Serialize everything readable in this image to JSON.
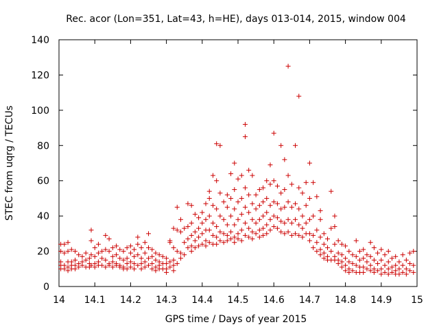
{
  "chart_data": {
    "type": "scatter",
    "title": "Rec. acor (Lon=351, Lat=43, h=HE), days 013-014, 2015, window 004",
    "xlabel": "GPS time / Days of year 2015",
    "ylabel": "STEC from uqrg / TECUs",
    "xlim": [
      14,
      15
    ],
    "ylim": [
      0,
      140
    ],
    "xticks": [
      "14",
      "14.1",
      "14.2",
      "14.3",
      "14.4",
      "14.5",
      "14.6",
      "14.7",
      "14.8",
      "14.9",
      "15"
    ],
    "yticks": [
      "0",
      "20",
      "40",
      "60",
      "80",
      "100",
      "120",
      "140"
    ],
    "grid": false,
    "marker": "+",
    "series_color": "#cc0000",
    "points": [
      [
        14.005,
        24
      ],
      [
        14.005,
        20
      ],
      [
        14.005,
        14
      ],
      [
        14.005,
        12
      ],
      [
        14.005,
        10
      ],
      [
        14.015,
        24
      ],
      [
        14.015,
        19
      ],
      [
        14.015,
        12
      ],
      [
        14.015,
        10
      ],
      [
        14.025,
        25
      ],
      [
        14.025,
        20
      ],
      [
        14.025,
        14
      ],
      [
        14.025,
        11
      ],
      [
        14.025,
        9
      ],
      [
        14.035,
        21
      ],
      [
        14.035,
        14
      ],
      [
        14.035,
        12
      ],
      [
        14.035,
        10
      ],
      [
        14.045,
        20
      ],
      [
        14.045,
        15
      ],
      [
        14.045,
        12
      ],
      [
        14.045,
        10
      ],
      [
        14.055,
        18
      ],
      [
        14.055,
        13
      ],
      [
        14.055,
        11
      ],
      [
        14.065,
        17
      ],
      [
        14.065,
        14
      ],
      [
        14.065,
        12
      ],
      [
        14.075,
        19
      ],
      [
        14.075,
        15
      ],
      [
        14.075,
        11
      ],
      [
        14.085,
        16
      ],
      [
        14.085,
        13
      ],
      [
        14.085,
        11
      ],
      [
        14.09,
        26
      ],
      [
        14.09,
        32
      ],
      [
        14.09,
        18
      ],
      [
        14.09,
        12
      ],
      [
        14.1,
        22
      ],
      [
        14.1,
        17
      ],
      [
        14.1,
        13
      ],
      [
        14.1,
        11
      ],
      [
        14.11,
        24
      ],
      [
        14.11,
        19
      ],
      [
        14.11,
        14
      ],
      [
        14.11,
        12
      ],
      [
        14.12,
        20
      ],
      [
        14.12,
        16
      ],
      [
        14.12,
        12
      ],
      [
        14.13,
        29
      ],
      [
        14.13,
        21
      ],
      [
        14.13,
        15
      ],
      [
        14.13,
        11
      ],
      [
        14.14,
        27
      ],
      [
        14.14,
        20
      ],
      [
        14.14,
        13
      ],
      [
        14.14,
        12
      ],
      [
        14.15,
        22
      ],
      [
        14.15,
        17
      ],
      [
        14.15,
        14
      ],
      [
        14.15,
        11
      ],
      [
        14.16,
        23
      ],
      [
        14.16,
        18
      ],
      [
        14.16,
        13
      ],
      [
        14.16,
        12
      ],
      [
        14.17,
        21
      ],
      [
        14.17,
        16
      ],
      [
        14.17,
        12
      ],
      [
        14.17,
        11
      ],
      [
        14.18,
        20
      ],
      [
        14.18,
        15
      ],
      [
        14.18,
        11
      ],
      [
        14.18,
        10
      ],
      [
        14.19,
        22
      ],
      [
        14.19,
        16
      ],
      [
        14.19,
        13
      ],
      [
        14.19,
        10
      ],
      [
        14.2,
        23
      ],
      [
        14.2,
        19
      ],
      [
        14.2,
        14
      ],
      [
        14.2,
        11
      ],
      [
        14.21,
        21
      ],
      [
        14.21,
        17
      ],
      [
        14.21,
        13
      ],
      [
        14.21,
        10
      ],
      [
        14.22,
        28
      ],
      [
        14.22,
        24
      ],
      [
        14.22,
        18
      ],
      [
        14.22,
        12
      ],
      [
        14.23,
        22
      ],
      [
        14.23,
        16
      ],
      [
        14.23,
        13
      ],
      [
        14.23,
        10
      ],
      [
        14.24,
        25
      ],
      [
        14.24,
        19
      ],
      [
        14.24,
        14
      ],
      [
        14.24,
        11
      ],
      [
        14.25,
        30
      ],
      [
        14.25,
        22
      ],
      [
        14.25,
        16
      ],
      [
        14.25,
        12
      ],
      [
        14.26,
        21
      ],
      [
        14.26,
        17
      ],
      [
        14.26,
        13
      ],
      [
        14.26,
        10
      ],
      [
        14.27,
        19
      ],
      [
        14.27,
        15
      ],
      [
        14.27,
        11
      ],
      [
        14.27,
        9
      ],
      [
        14.28,
        18
      ],
      [
        14.28,
        14
      ],
      [
        14.28,
        12
      ],
      [
        14.28,
        10
      ],
      [
        14.29,
        17
      ],
      [
        14.29,
        13
      ],
      [
        14.29,
        10
      ],
      [
        14.3,
        16
      ],
      [
        14.3,
        13
      ],
      [
        14.3,
        10
      ],
      [
        14.3,
        8
      ],
      [
        14.31,
        26
      ],
      [
        14.31,
        25
      ],
      [
        14.31,
        14
      ],
      [
        14.31,
        11
      ],
      [
        14.32,
        33
      ],
      [
        14.32,
        22
      ],
      [
        14.32,
        15
      ],
      [
        14.32,
        12
      ],
      [
        14.32,
        9
      ],
      [
        14.33,
        45
      ],
      [
        14.33,
        32
      ],
      [
        14.33,
        20
      ],
      [
        14.33,
        13
      ],
      [
        14.34,
        38
      ],
      [
        14.34,
        31
      ],
      [
        14.34,
        19
      ],
      [
        14.34,
        16
      ],
      [
        14.35,
        33
      ],
      [
        14.35,
        25
      ],
      [
        14.35,
        18
      ],
      [
        14.36,
        47
      ],
      [
        14.36,
        34
      ],
      [
        14.36,
        27
      ],
      [
        14.36,
        22
      ],
      [
        14.37,
        46
      ],
      [
        14.37,
        36
      ],
      [
        14.37,
        29
      ],
      [
        14.37,
        23
      ],
      [
        14.37,
        20
      ],
      [
        14.38,
        41
      ],
      [
        14.38,
        31
      ],
      [
        14.38,
        26
      ],
      [
        14.38,
        22
      ],
      [
        14.39,
        39
      ],
      [
        14.39,
        33
      ],
      [
        14.39,
        28
      ],
      [
        14.39,
        23
      ],
      [
        14.4,
        42
      ],
      [
        14.4,
        36
      ],
      [
        14.4,
        30
      ],
      [
        14.4,
        24
      ],
      [
        14.41,
        47
      ],
      [
        14.41,
        38
      ],
      [
        14.41,
        32
      ],
      [
        14.41,
        26
      ],
      [
        14.41,
        23
      ],
      [
        14.42,
        54
      ],
      [
        14.42,
        50
      ],
      [
        14.42,
        40
      ],
      [
        14.42,
        32
      ],
      [
        14.42,
        25
      ],
      [
        14.43,
        63
      ],
      [
        14.43,
        46
      ],
      [
        14.43,
        36
      ],
      [
        14.43,
        29
      ],
      [
        14.43,
        24
      ],
      [
        14.44,
        81
      ],
      [
        14.44,
        60
      ],
      [
        14.44,
        44
      ],
      [
        14.44,
        34
      ],
      [
        14.44,
        28
      ],
      [
        14.44,
        24
      ],
      [
        14.45,
        80
      ],
      [
        14.45,
        53
      ],
      [
        14.45,
        40
      ],
      [
        14.45,
        31
      ],
      [
        14.45,
        26
      ],
      [
        14.46,
        48
      ],
      [
        14.46,
        38
      ],
      [
        14.46,
        30
      ],
      [
        14.46,
        25
      ],
      [
        14.47,
        52
      ],
      [
        14.47,
        45
      ],
      [
        14.47,
        35
      ],
      [
        14.47,
        29
      ],
      [
        14.47,
        26
      ],
      [
        14.48,
        64
      ],
      [
        14.48,
        50
      ],
      [
        14.48,
        40
      ],
      [
        14.48,
        31
      ],
      [
        14.48,
        27
      ],
      [
        14.49,
        70
      ],
      [
        14.49,
        55
      ],
      [
        14.49,
        44
      ],
      [
        14.49,
        35
      ],
      [
        14.49,
        28
      ],
      [
        14.49,
        25
      ],
      [
        14.5,
        61
      ],
      [
        14.5,
        48
      ],
      [
        14.5,
        38
      ],
      [
        14.5,
        30
      ],
      [
        14.5,
        27
      ],
      [
        14.51,
        63
      ],
      [
        14.51,
        50
      ],
      [
        14.51,
        41
      ],
      [
        14.51,
        32
      ],
      [
        14.51,
        26
      ],
      [
        14.52,
        92
      ],
      [
        14.52,
        85
      ],
      [
        14.52,
        56
      ],
      [
        14.52,
        45
      ],
      [
        14.52,
        36
      ],
      [
        14.52,
        29
      ],
      [
        14.53,
        66
      ],
      [
        14.53,
        52
      ],
      [
        14.53,
        42
      ],
      [
        14.53,
        33
      ],
      [
        14.53,
        28
      ],
      [
        14.54,
        63
      ],
      [
        14.54,
        47
      ],
      [
        14.54,
        38
      ],
      [
        14.54,
        31
      ],
      [
        14.54,
        27
      ],
      [
        14.55,
        52
      ],
      [
        14.55,
        44
      ],
      [
        14.55,
        36
      ],
      [
        14.55,
        30
      ],
      [
        14.56,
        55
      ],
      [
        14.56,
        46
      ],
      [
        14.56,
        38
      ],
      [
        14.56,
        32
      ],
      [
        14.56,
        28
      ],
      [
        14.57,
        56
      ],
      [
        14.57,
        48
      ],
      [
        14.57,
        40
      ],
      [
        14.57,
        33
      ],
      [
        14.57,
        29
      ],
      [
        14.58,
        60
      ],
      [
        14.58,
        50
      ],
      [
        14.58,
        42
      ],
      [
        14.58,
        35
      ],
      [
        14.58,
        30
      ],
      [
        14.59,
        69
      ],
      [
        14.59,
        58
      ],
      [
        14.59,
        46
      ],
      [
        14.59,
        38
      ],
      [
        14.59,
        32
      ],
      [
        14.6,
        87
      ],
      [
        14.6,
        60
      ],
      [
        14.6,
        48
      ],
      [
        14.6,
        40
      ],
      [
        14.6,
        34
      ],
      [
        14.61,
        57
      ],
      [
        14.61,
        47
      ],
      [
        14.61,
        39
      ],
      [
        14.61,
        33
      ],
      [
        14.62,
        80
      ],
      [
        14.62,
        53
      ],
      [
        14.62,
        44
      ],
      [
        14.62,
        37
      ],
      [
        14.62,
        31
      ],
      [
        14.63,
        72
      ],
      [
        14.63,
        55
      ],
      [
        14.63,
        45
      ],
      [
        14.63,
        36
      ],
      [
        14.63,
        30
      ],
      [
        14.64,
        125
      ],
      [
        14.64,
        63
      ],
      [
        14.64,
        48
      ],
      [
        14.64,
        38
      ],
      [
        14.64,
        31
      ],
      [
        14.65,
        58
      ],
      [
        14.65,
        45
      ],
      [
        14.65,
        36
      ],
      [
        14.65,
        29
      ],
      [
        14.66,
        80
      ],
      [
        14.66,
        47
      ],
      [
        14.66,
        38
      ],
      [
        14.66,
        30
      ],
      [
        14.67,
        108
      ],
      [
        14.67,
        56
      ],
      [
        14.67,
        44
      ],
      [
        14.67,
        35
      ],
      [
        14.67,
        29
      ],
      [
        14.68,
        53
      ],
      [
        14.68,
        40
      ],
      [
        14.68,
        33
      ],
      [
        14.68,
        28
      ],
      [
        14.69,
        59
      ],
      [
        14.69,
        46
      ],
      [
        14.69,
        36
      ],
      [
        14.69,
        30
      ],
      [
        14.7,
        70
      ],
      [
        14.7,
        50
      ],
      [
        14.7,
        38
      ],
      [
        14.7,
        30
      ],
      [
        14.7,
        26
      ],
      [
        14.71,
        59
      ],
      [
        14.71,
        40
      ],
      [
        14.71,
        29
      ],
      [
        14.71,
        22
      ],
      [
        14.72,
        51
      ],
      [
        14.72,
        32
      ],
      [
        14.72,
        25
      ],
      [
        14.72,
        20
      ],
      [
        14.73,
        43
      ],
      [
        14.73,
        38
      ],
      [
        14.73,
        28
      ],
      [
        14.73,
        21
      ],
      [
        14.73,
        18
      ],
      [
        14.74,
        30
      ],
      [
        14.74,
        24
      ],
      [
        14.74,
        19
      ],
      [
        14.74,
        16
      ],
      [
        14.75,
        27
      ],
      [
        14.75,
        22
      ],
      [
        14.75,
        17
      ],
      [
        14.75,
        15
      ],
      [
        14.76,
        54
      ],
      [
        14.76,
        33
      ],
      [
        14.76,
        20
      ],
      [
        14.76,
        15
      ],
      [
        14.77,
        40
      ],
      [
        14.77,
        34
      ],
      [
        14.77,
        24
      ],
      [
        14.77,
        17
      ],
      [
        14.77,
        15
      ],
      [
        14.78,
        26
      ],
      [
        14.78,
        19
      ],
      [
        14.78,
        15
      ],
      [
        14.78,
        13
      ],
      [
        14.79,
        24
      ],
      [
        14.79,
        18
      ],
      [
        14.79,
        14
      ],
      [
        14.79,
        11
      ],
      [
        14.8,
        23
      ],
      [
        14.8,
        16
      ],
      [
        14.8,
        12
      ],
      [
        14.8,
        9
      ],
      [
        14.81,
        20
      ],
      [
        14.81,
        14
      ],
      [
        14.81,
        10
      ],
      [
        14.81,
        8
      ],
      [
        14.82,
        18
      ],
      [
        14.82,
        13
      ],
      [
        14.82,
        9
      ],
      [
        14.83,
        26
      ],
      [
        14.83,
        17
      ],
      [
        14.83,
        12
      ],
      [
        14.83,
        8
      ],
      [
        14.84,
        20
      ],
      [
        14.84,
        15
      ],
      [
        14.84,
        11
      ],
      [
        14.84,
        8
      ],
      [
        14.85,
        21
      ],
      [
        14.85,
        16
      ],
      [
        14.85,
        11
      ],
      [
        14.85,
        8
      ],
      [
        14.86,
        18
      ],
      [
        14.86,
        14
      ],
      [
        14.86,
        10
      ],
      [
        14.87,
        25
      ],
      [
        14.87,
        17
      ],
      [
        14.87,
        12
      ],
      [
        14.87,
        9
      ],
      [
        14.88,
        22
      ],
      [
        14.88,
        15
      ],
      [
        14.88,
        10
      ],
      [
        14.88,
        8
      ],
      [
        14.89,
        19
      ],
      [
        14.89,
        13
      ],
      [
        14.89,
        9
      ],
      [
        14.9,
        21
      ],
      [
        14.9,
        15
      ],
      [
        14.9,
        10
      ],
      [
        14.9,
        7
      ],
      [
        14.91,
        18
      ],
      [
        14.91,
        12
      ],
      [
        14.91,
        8
      ],
      [
        14.92,
        20
      ],
      [
        14.92,
        14
      ],
      [
        14.92,
        10
      ],
      [
        14.92,
        7
      ],
      [
        14.93,
        16
      ],
      [
        14.93,
        11
      ],
      [
        14.93,
        8
      ],
      [
        14.94,
        17
      ],
      [
        14.94,
        12
      ],
      [
        14.94,
        9
      ],
      [
        14.94,
        7
      ],
      [
        14.95,
        14
      ],
      [
        14.95,
        10
      ],
      [
        14.95,
        7
      ],
      [
        14.96,
        18
      ],
      [
        14.96,
        12
      ],
      [
        14.96,
        8
      ],
      [
        14.97,
        15
      ],
      [
        14.97,
        10
      ],
      [
        14.97,
        7
      ],
      [
        14.98,
        19
      ],
      [
        14.98,
        13
      ],
      [
        14.98,
        9
      ],
      [
        14.99,
        20
      ],
      [
        14.99,
        12
      ],
      [
        14.99,
        8
      ]
    ]
  }
}
